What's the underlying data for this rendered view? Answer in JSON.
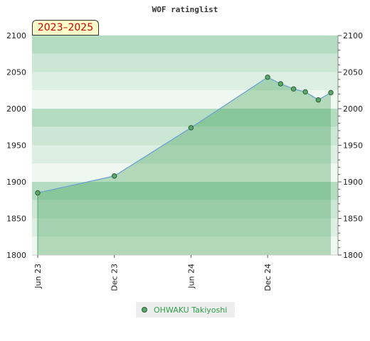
{
  "chart_data": {
    "type": "area",
    "title": "WOF ratinglist",
    "period": "2023–2025",
    "xlabel": "",
    "ylabel": "",
    "ylim": [
      1800,
      2100
    ],
    "yticks": [
      1800,
      1850,
      1900,
      1950,
      2000,
      2050,
      2100
    ],
    "xticks": [
      "Jun 23",
      "Dec 23",
      "Jun 24",
      "Dec 24"
    ],
    "grid": true,
    "legend_position": "bottom-center",
    "series": [
      {
        "name": "OHWAKU Takiyoshi",
        "color": "#5aa86a",
        "line_color": "#6aa0d0",
        "x": [
          "2023-06",
          "2023-12",
          "2024-06",
          "2024-12",
          "2025-01",
          "2025-02",
          "2025-03",
          "2025-04",
          "2025-05"
        ],
        "values": [
          1885,
          1908,
          1974,
          2043,
          2034,
          2027,
          2023,
          2012,
          2022
        ]
      }
    ]
  },
  "colors": {
    "band_dark": "#b3dcc0",
    "band_mid": "#cbe7d4",
    "band_light": "#dcefe2",
    "band_lightest": "#eef7f0",
    "area_fill": "#3d9e52",
    "line": "#6aa0d0",
    "marker": "#5aa86a",
    "legend_text": "#2e9e4a",
    "badge_bg": "#ffffcc",
    "badge_text": "#cc0000"
  }
}
